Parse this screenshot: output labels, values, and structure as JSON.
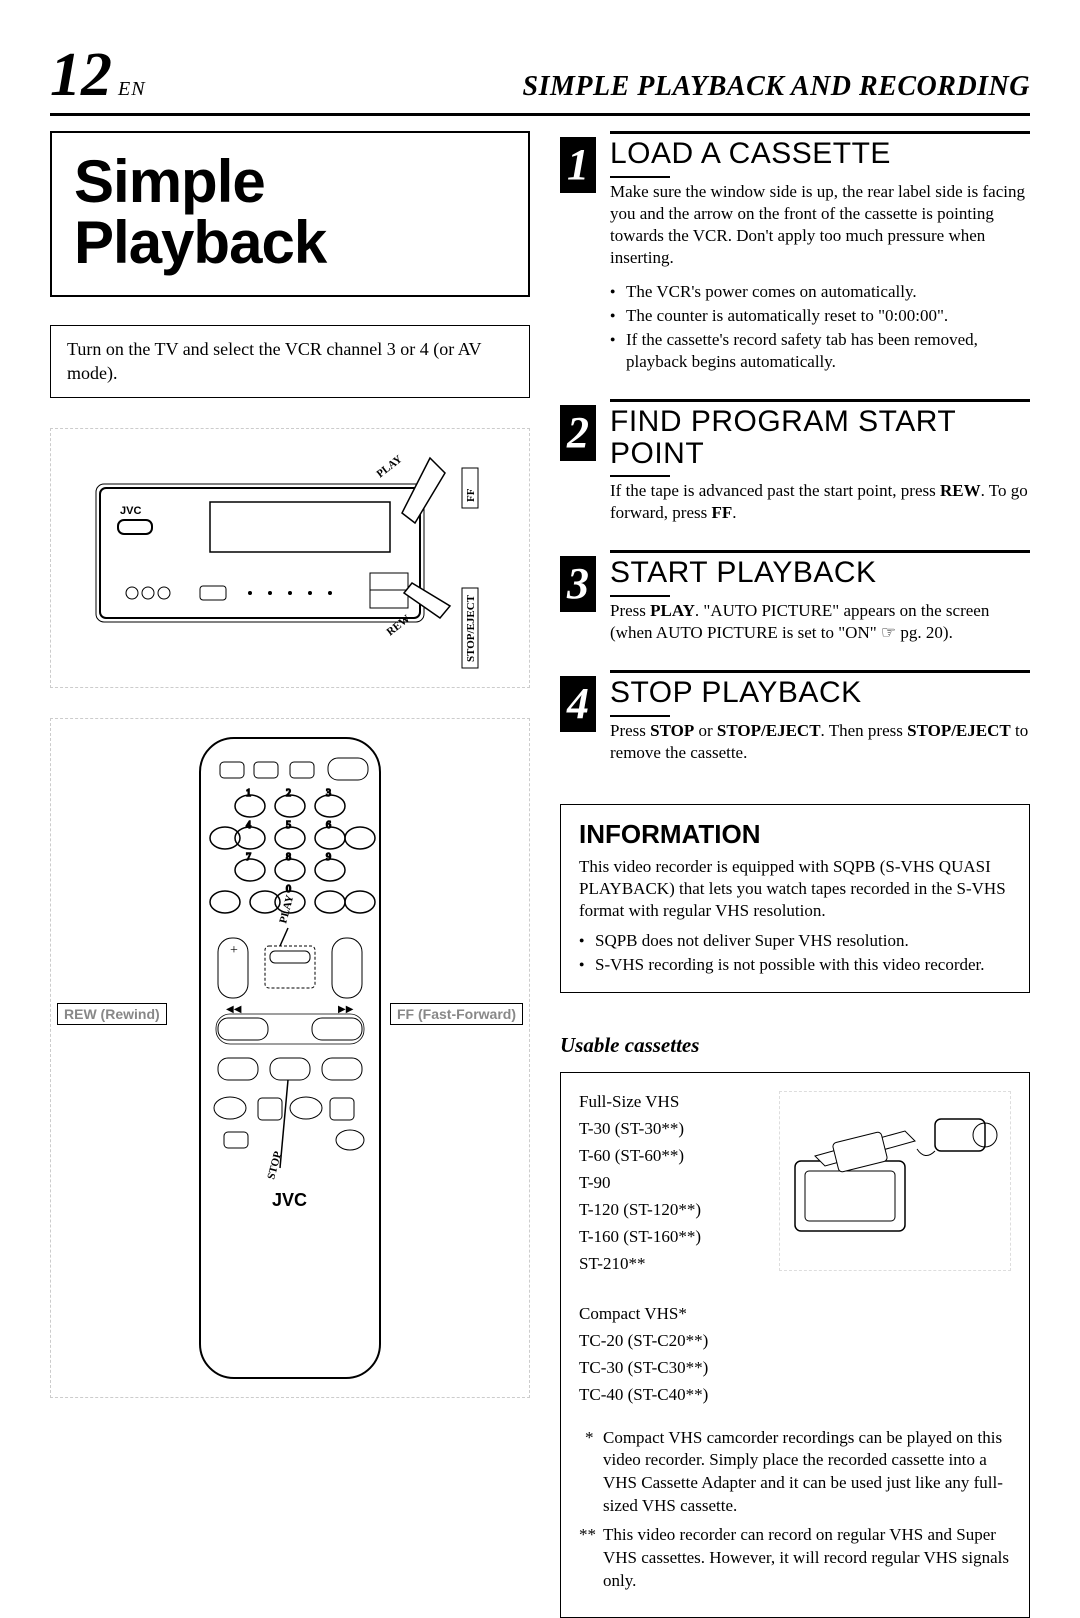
{
  "header": {
    "page_number": "12",
    "lang_label": "EN",
    "title": "SIMPLE PLAYBACK AND RECORDING"
  },
  "main_title": "Simple Playback",
  "tv_note": "Turn on the TV and select the VCR channel 3 or 4 (or AV mode).",
  "vcr_illustration_labels": {
    "play": "PLAY",
    "ff": "FF",
    "rew": "REW",
    "stop_eject": "STOP/EJECT",
    "brand": "JVC"
  },
  "remote_illustration_labels": {
    "play": "PLAY",
    "rew": "REW (Rewind)",
    "ff": "FF (Fast-Forward)",
    "stop": "STOP",
    "brand": "JVC"
  },
  "steps": [
    {
      "num": "1",
      "heading": "LOAD A CASSETTE",
      "body": "Make sure the window side is up, the rear label side is facing you and the arrow on the front of the cassette is pointing towards the VCR. Don't apply too much pressure when inserting.",
      "bullets": [
        "The VCR's power comes on automatically.",
        "The counter is automatically reset to \"0:00:00\".",
        "If the cassette's record safety tab has been removed, playback begins automatically."
      ]
    },
    {
      "num": "2",
      "heading": "FIND PROGRAM START POINT",
      "body_html": "If the tape is advanced past the start point, press <strong>REW</strong>. To go forward, press <strong>FF</strong>."
    },
    {
      "num": "3",
      "heading": "START PLAYBACK",
      "body_html": "Press <strong>PLAY</strong>. \"AUTO PICTURE\" appears on the screen (when AUTO PICTURE is set to \"ON\" ☞ pg. 20)."
    },
    {
      "num": "4",
      "heading": "STOP PLAYBACK",
      "body_html": "Press <strong>STOP</strong> or <strong>STOP/EJECT</strong>. Then press <strong>STOP/EJECT</strong> to remove the cassette."
    }
  ],
  "information": {
    "title": "INFORMATION",
    "body": "This video recorder is equipped with SQPB (S-VHS QUASI PLAYBACK) that lets you watch tapes recorded in the S-VHS format with regular VHS resolution.",
    "bullets": [
      "SQPB does not deliver Super VHS resolution.",
      "S-VHS recording is not possible with this video recorder."
    ]
  },
  "usable": {
    "heading": "Usable cassettes",
    "full_size_label": "Full-Size VHS",
    "full_size": [
      "T-30 (ST-30**)",
      "T-60 (ST-60**)",
      "T-90",
      "T-120 (ST-120**)",
      "T-160 (ST-160**)",
      "ST-210**"
    ],
    "compact_label": "Compact VHS*",
    "compact": [
      "TC-20 (ST-C20**)",
      "TC-30 (ST-C30**)",
      "TC-40 (ST-C40**)"
    ],
    "footnote1": "Compact VHS camcorder recordings can be played on this video recorder. Simply place the recorded cassette into a VHS Cassette Adapter and it can be used just like any full-sized VHS cassette.",
    "footnote2": "This video recorder can record on regular VHS and Super VHS cassettes. However, it will record regular VHS signals only."
  }
}
